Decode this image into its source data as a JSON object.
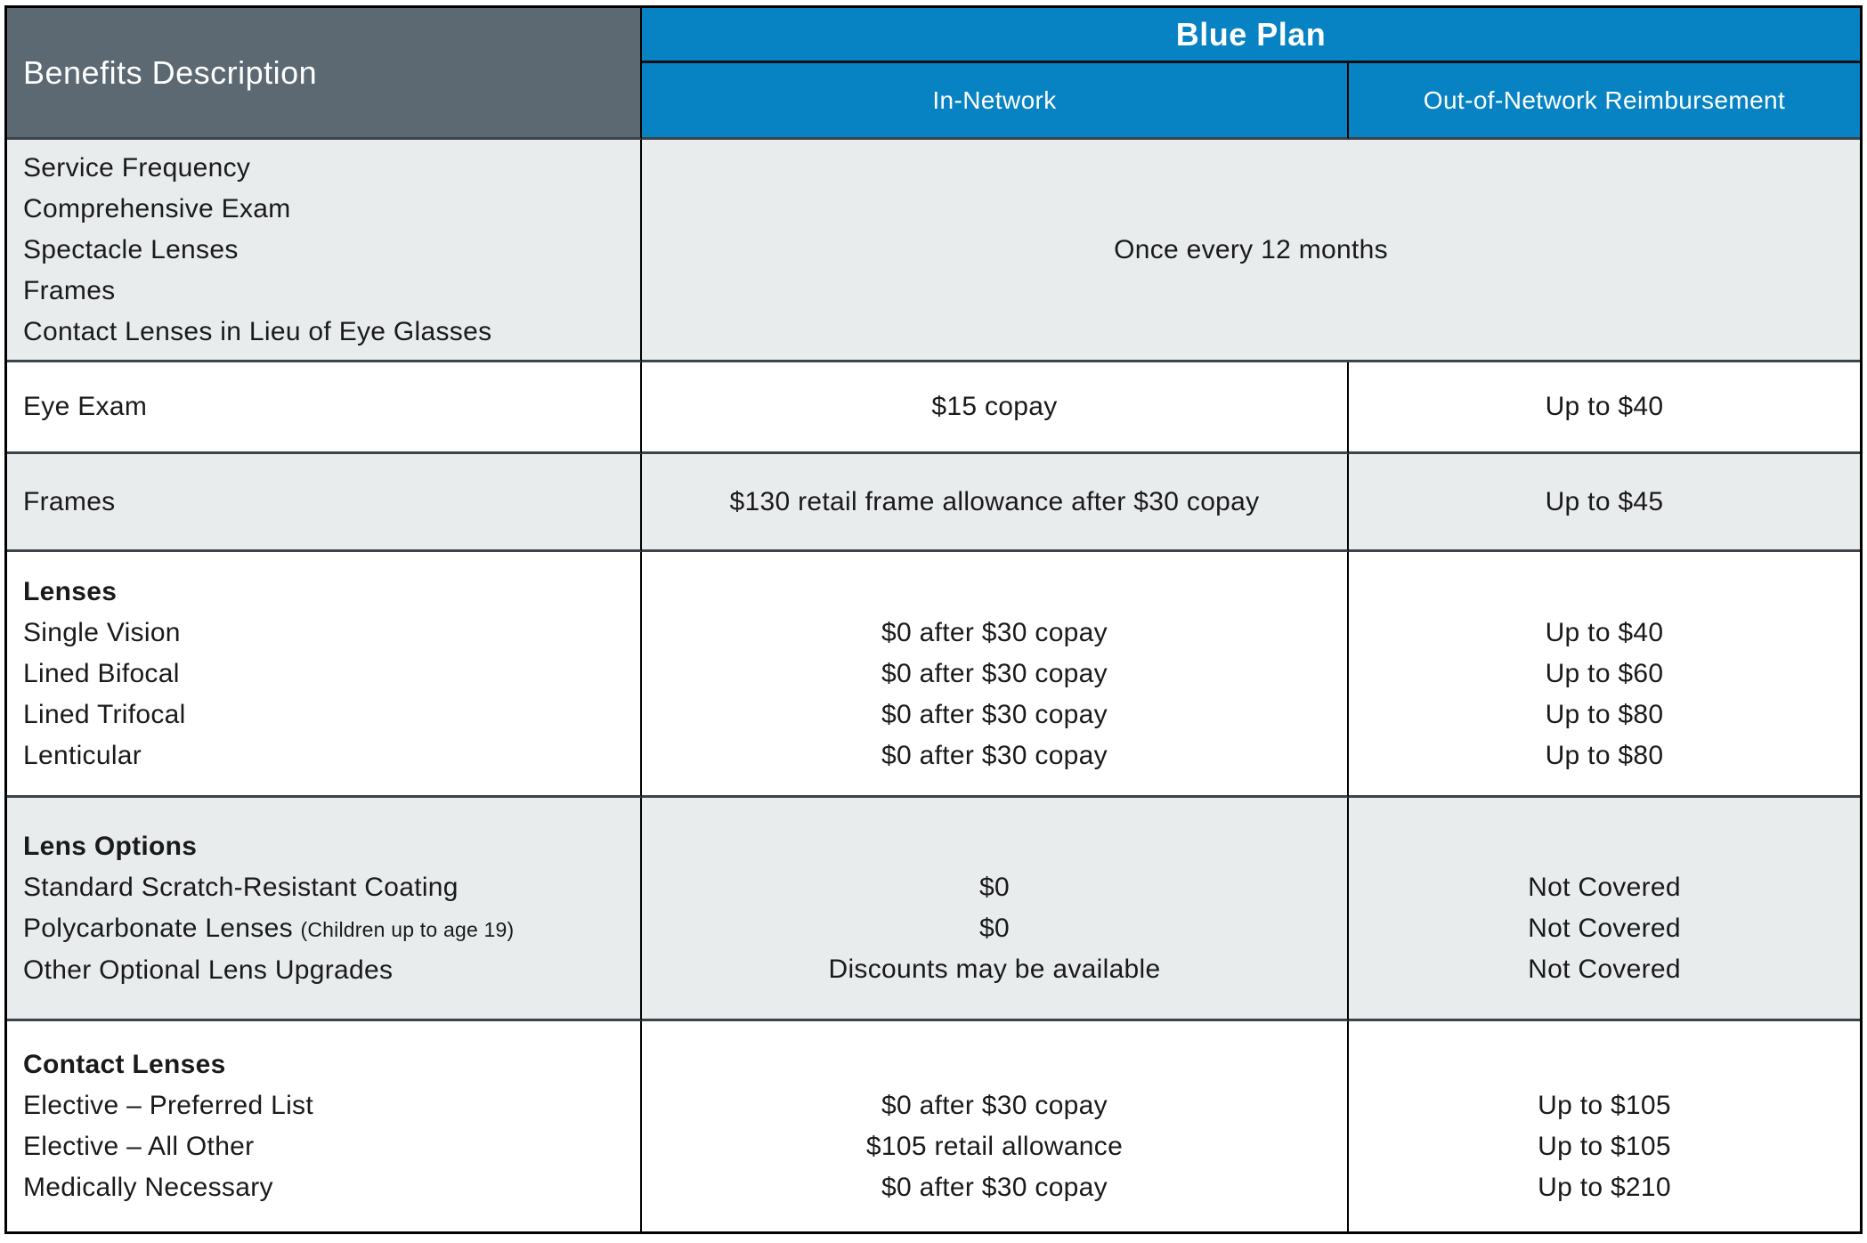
{
  "header": {
    "benefits_col": "Benefits Description",
    "plan_title": "Blue Plan",
    "col_in_network": "In-Network",
    "col_out_network": "Out-of-Network Reimbursement"
  },
  "rows": {
    "service_frequency": {
      "lines": [
        "Service Frequency",
        "Comprehensive Exam",
        "Spectacle Lenses",
        "Frames",
        "Contact Lenses in Lieu of Eye Glasses"
      ],
      "merged_value": "Once every 12 months"
    },
    "eye_exam": {
      "label": "Eye Exam",
      "in_network": "$15 copay",
      "out_network": "Up to $40"
    },
    "frames": {
      "label": "Frames",
      "in_network": "$130 retail frame allowance after $30 copay",
      "out_network": "Up to $45"
    },
    "lenses": {
      "heading": "Lenses",
      "items": [
        "Single Vision",
        "Lined Bifocal",
        "Lined Trifocal",
        "Lenticular"
      ],
      "in_network": [
        "$0 after $30 copay",
        "$0 after $30 copay",
        "$0 after $30 copay",
        "$0 after $30 copay"
      ],
      "out_network": [
        "Up to $40",
        "Up to $60",
        "Up to $80",
        "Up to $80"
      ]
    },
    "lens_options": {
      "heading": "Lens Options",
      "items": [
        "Standard Scratch-Resistant Coating",
        "Polycarbonate Lenses",
        "Other Optional Lens Upgrades"
      ],
      "polycarbonate_note": "(Children up to age 19)",
      "in_network": [
        "$0",
        "$0",
        "Discounts may be available"
      ],
      "out_network": [
        "Not Covered",
        "Not Covered",
        "Not Covered"
      ]
    },
    "contact_lenses": {
      "heading": "Contact Lenses",
      "items": [
        "Elective – Preferred List",
        "Elective – All Other",
        "Medically Necessary"
      ],
      "in_network": [
        "$0 after $30 copay",
        "$105 retail allowance",
        "$0 after $30 copay"
      ],
      "out_network": [
        "Up to $105",
        "Up to $105",
        "Up to $210"
      ]
    }
  },
  "colors": {
    "plan_blue": "#0783c4",
    "header_slate": "#5c6972",
    "row_gray": "#e9eced",
    "separator": "#3b434b"
  }
}
